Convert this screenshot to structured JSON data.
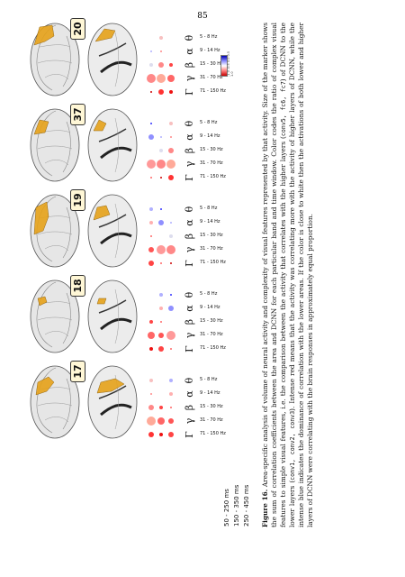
{
  "page_number": "85",
  "time_windows": [
    "50 - 250 ms",
    "150 - 350 ms",
    "250 - 450 ms"
  ],
  "bands": {
    "greek": [
      "θ",
      "α",
      "β",
      "γ",
      "Γ"
    ],
    "hz": [
      "5 - 8 Hz",
      "9 - 14 Hz",
      "15 - 30 Hz",
      "31 - 70 Hz",
      "71 - 150 Hz"
    ]
  },
  "panels": [
    {
      "number": "17"
    },
    {
      "number": "18"
    },
    {
      "number": "19"
    },
    {
      "number": "37"
    },
    {
      "number": "20"
    }
  ],
  "colorbar": {
    "ticks": "-1.0 -0.5 0.0 0.5 1.0"
  },
  "caption": {
    "label": "Figure 16.",
    "p1": " Area-specific analysis of volume of neural activity and complexity of visual features represented by that activity. Size of the marker shows the sum of correlation coefficients between the area and DCNN for each particular band and time window. Color codes the ratio of complex visual features to simple visual features, i.e. the comparison between the activity that correlates with the higher layers (",
    "higher_layers": "conv5, fc6, fc7",
    "p2": ") of DCNN to the lower layers (",
    "lower_layers": "conv1, conv2, conv3",
    "p3": "). Intense red means that the activity was correlating more with the activity of higher layers of DCNN, while the intense blue indicates the dominance of correlation with the lower areas. If the color is close to white then the activations of both lower and higher layers of DCNN were correlating with the brain responses in approximately equal proportion."
  }
}
